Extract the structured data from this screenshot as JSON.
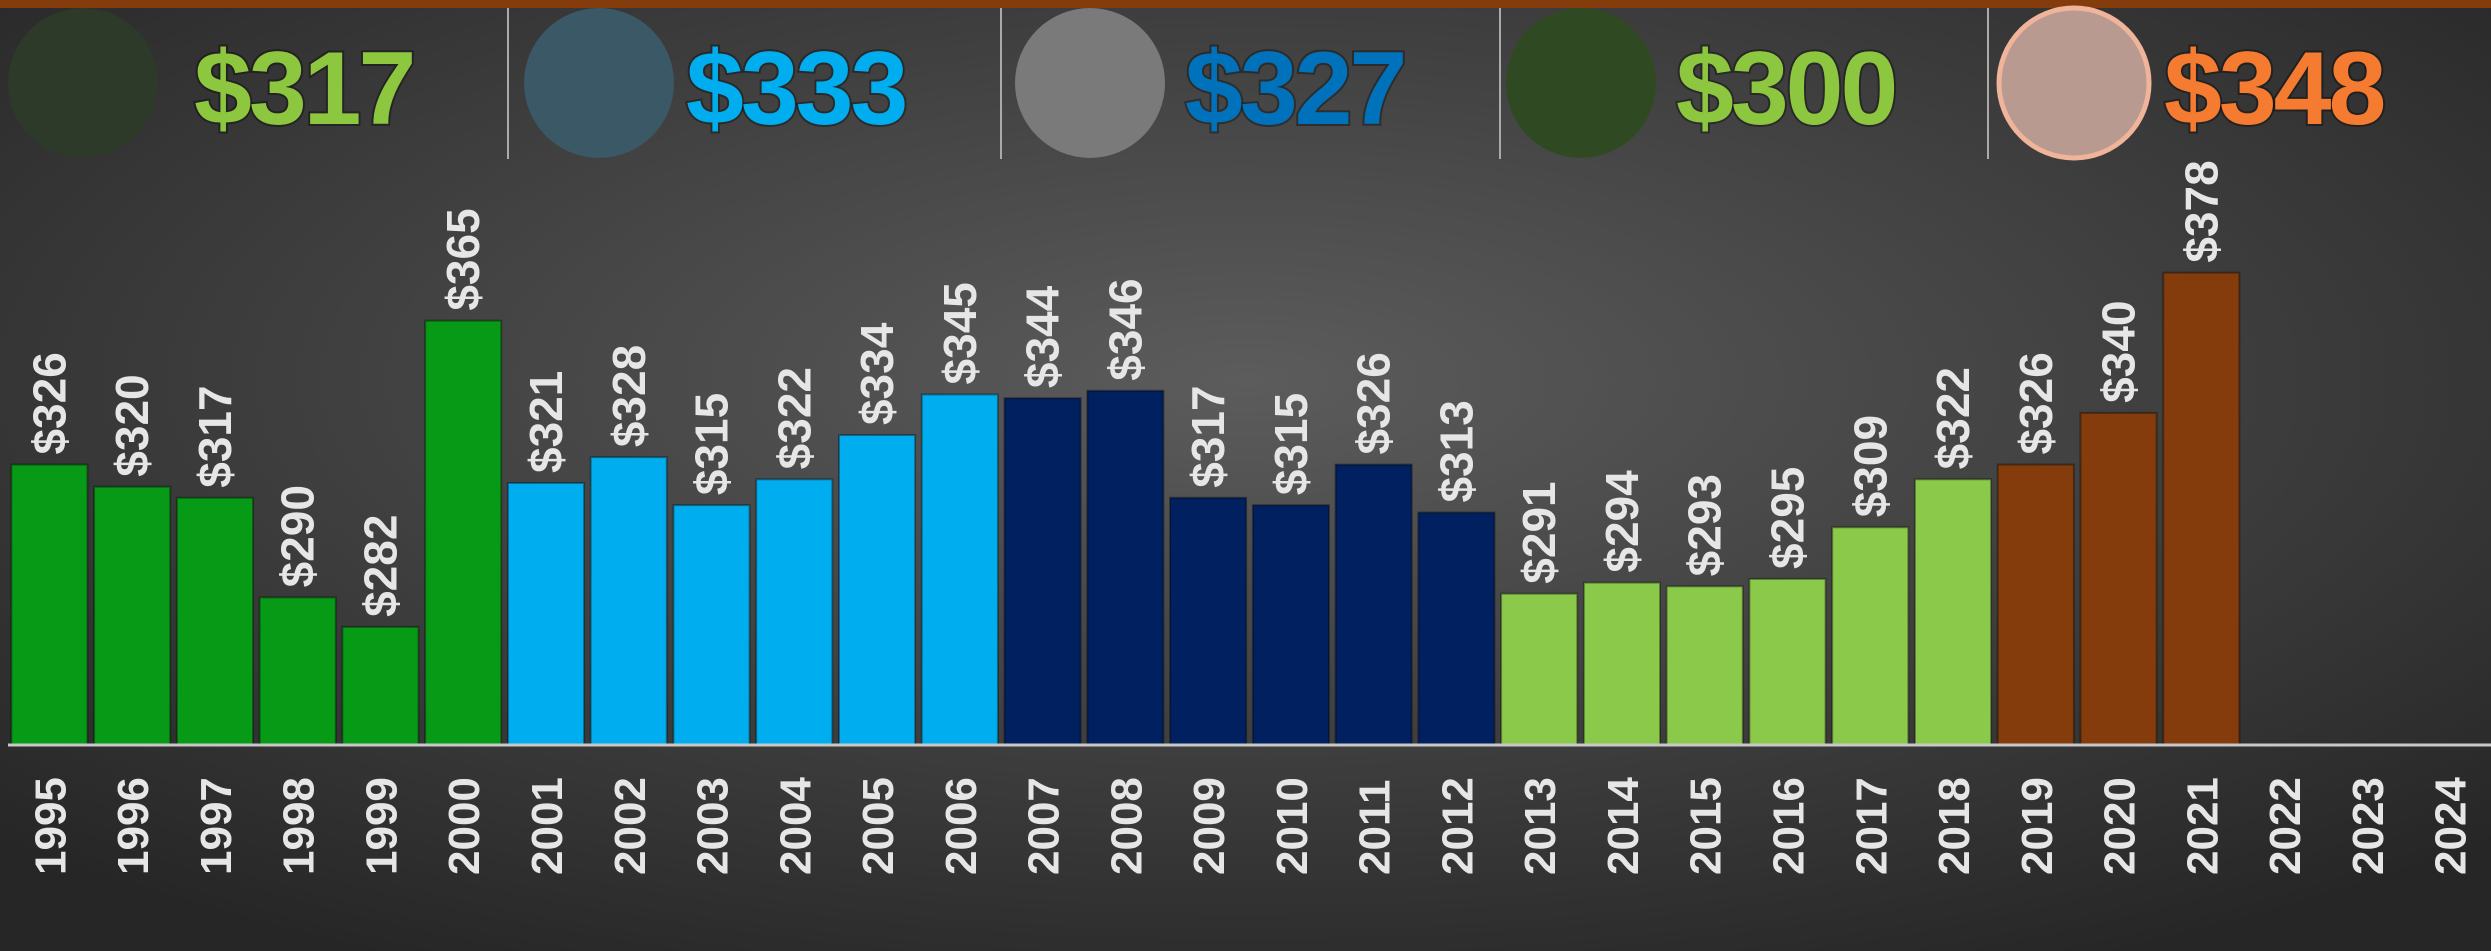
{
  "chart_data": {
    "type": "bar",
    "annotations": [
      {
        "text": "$317",
        "color": "#8dc63f"
      },
      {
        "text": "$333",
        "color": "#00aeef"
      },
      {
        "text": "$327",
        "color": "#0072bc"
      },
      {
        "text": "$300",
        "color": "#8dc63f"
      },
      {
        "text": "$348",
        "color": "#f47b30"
      }
    ],
    "categories": [
      "1995",
      "1996",
      "1997",
      "1998",
      "1999",
      "2000",
      "2001",
      "2002",
      "2003",
      "2004",
      "2005",
      "2006",
      "2007",
      "2008",
      "2009",
      "2010",
      "2011",
      "2012",
      "2013",
      "2014",
      "2015",
      "2016",
      "2017",
      "2018",
      "2019",
      "2020",
      "2021",
      "2022",
      "2023",
      "2024"
    ],
    "values": [
      326,
      320,
      317,
      290,
      282,
      365,
      321,
      328,
      315,
      322,
      334,
      345,
      344,
      346,
      317,
      315,
      326,
      313,
      291,
      294,
      293,
      295,
      309,
      322,
      326,
      340,
      378,
      null,
      null,
      null
    ],
    "value_labels": [
      "$326",
      "$320",
      "$317",
      "$290",
      "$282",
      "$365",
      "$321",
      "$328",
      "$315",
      "$322",
      "$334",
      "$345",
      "$344",
      "$346",
      "$317",
      "$315",
      "$326",
      "$313",
      "$291",
      "$294",
      "$293",
      "$295",
      "$309",
      "$322",
      "$326",
      "$340",
      "$378",
      null,
      null,
      null
    ],
    "colors": [
      "#079a16",
      "#079a16",
      "#079a16",
      "#079a16",
      "#079a16",
      "#079a16",
      "#00aeef",
      "#00aeef",
      "#00aeef",
      "#00aeef",
      "#00aeef",
      "#00aeef",
      "#002060",
      "#002060",
      "#002060",
      "#002060",
      "#002060",
      "#002060",
      "#8bc94a",
      "#8bc94a",
      "#8bc94a",
      "#8bc94a",
      "#8bc94a",
      "#8bc94a",
      "#843c0c",
      "#843c0c",
      "#843c0c",
      null,
      null,
      null
    ],
    "ylim": [
      250,
      400
    ]
  }
}
